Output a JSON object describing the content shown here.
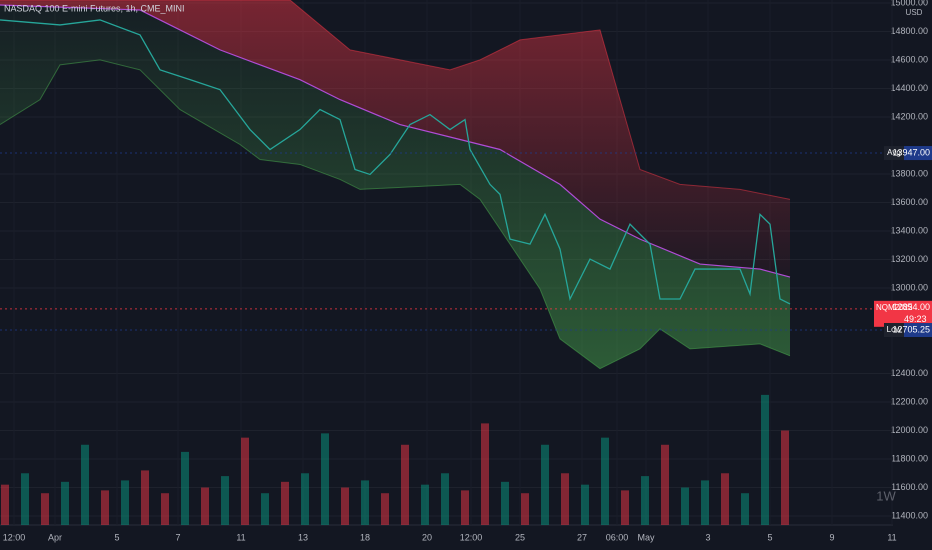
{
  "chart_data": {
    "type": "line",
    "title": "NASDAQ 100 E-mini Futures, 1h, CME_MINI",
    "currency": "USD",
    "timeframe": "1W",
    "xlim": [
      0,
      89.3
    ],
    "ylim": [
      11337,
      15021
    ],
    "grid": true,
    "xticks": [
      {
        "value": 1.4,
        "label": "12:00"
      },
      {
        "value": 5.5,
        "label": "Apr"
      },
      {
        "value": 11.7,
        "label": "5"
      },
      {
        "value": 17.8,
        "label": "7"
      },
      {
        "value": 24.1,
        "label": "11"
      },
      {
        "value": 30.3,
        "label": "13"
      },
      {
        "value": 36.5,
        "label": "18"
      },
      {
        "value": 42.7,
        "label": "20"
      },
      {
        "value": 47.1,
        "label": "12:00"
      },
      {
        "value": 52,
        "label": "25"
      },
      {
        "value": 58.2,
        "label": "27"
      },
      {
        "value": 61.7,
        "label": "06:00"
      },
      {
        "value": 64.6,
        "label": "May"
      },
      {
        "value": 70.8,
        "label": "3"
      },
      {
        "value": 77,
        "label": "5"
      },
      {
        "value": 83.2,
        "label": "9"
      },
      {
        "value": 89.2,
        "label": "11"
      }
    ],
    "yticks": [
      {
        "value": 15000,
        "label": "15000.00"
      },
      {
        "value": 14800,
        "label": "14800.00"
      },
      {
        "value": 14600,
        "label": "14600.00"
      },
      {
        "value": 14400,
        "label": "14400.00"
      },
      {
        "value": 14200,
        "label": "14200.00"
      },
      {
        "value": 13800,
        "label": "13800.00"
      },
      {
        "value": 13600,
        "label": "13600.00"
      },
      {
        "value": 13400,
        "label": "13400.00"
      },
      {
        "value": 13200,
        "label": "13200.00"
      },
      {
        "value": 13000,
        "label": "13000.00"
      },
      {
        "value": 12400,
        "label": "12400.00"
      },
      {
        "value": 12200,
        "label": "12200.00"
      },
      {
        "value": 12000,
        "label": "12000.00"
      },
      {
        "value": 11800,
        "label": "11800.00"
      },
      {
        "value": 11600,
        "label": "11600.00"
      },
      {
        "value": 11400,
        "label": "11400.00"
      }
    ],
    "price": {
      "color": "#26a69a",
      "x": [
        0,
        6,
        10,
        14,
        16,
        19,
        22,
        25,
        27,
        30,
        32,
        34,
        35.5,
        37,
        39,
        41,
        43,
        45,
        46.5,
        47,
        49,
        50,
        51,
        53,
        54.5,
        56,
        57,
        59,
        61,
        63,
        65,
        66,
        68,
        69.5,
        72,
        74,
        75,
        76,
        77,
        78,
        79
      ],
      "values": [
        14881,
        14846,
        14881,
        14776,
        14531,
        14462,
        14392,
        14112,
        13972,
        14112,
        14252,
        14182,
        13832,
        13797,
        13937,
        14147,
        14217,
        14112,
        14182,
        13972,
        13727,
        13657,
        13343,
        13308,
        13517,
        13273,
        12923,
        13203,
        13133,
        13448,
        13308,
        12923,
        12923,
        13133,
        13133,
        13133,
        12958,
        13517,
        13448,
        12923,
        12888
      ]
    },
    "average": {
      "color": "#b04cd6",
      "x": [
        0,
        14,
        16,
        22,
        26,
        30,
        34,
        40,
        46,
        50,
        56,
        60,
        64,
        70,
        76,
        79
      ],
      "values": [
        14986,
        14951,
        14881,
        14671,
        14566,
        14462,
        14322,
        14147,
        14042,
        13972,
        13727,
        13483,
        13343,
        13168,
        13133,
        13077
      ]
    },
    "upper_band": {
      "color": "#f23645",
      "x": [
        0,
        29,
        35,
        45,
        48,
        52,
        60,
        62,
        64,
        68,
        74,
        79
      ],
      "values": [
        15021,
        15021,
        14671,
        14531,
        14601,
        14741,
        14811,
        14322,
        13832,
        13727,
        13692,
        13622
      ]
    },
    "lower_band": {
      "color": "#4caf50",
      "x": [
        0,
        4,
        6,
        10,
        14,
        18,
        24,
        26,
        30,
        34,
        36,
        46,
        48,
        50,
        54,
        56,
        60,
        64,
        66,
        69,
        76,
        79
      ],
      "values": [
        14147,
        14322,
        14566,
        14601,
        14531,
        14252,
        14007,
        13902,
        13867,
        13762,
        13692,
        13727,
        13622,
        13413,
        12993,
        12643,
        12434,
        12573,
        12713,
        12573,
        12608,
        12524
      ]
    },
    "volume": {
      "x": [
        0.5,
        2.5,
        4.5,
        6.5,
        8.5,
        10.5,
        12.5,
        14.5,
        16.5,
        18.5,
        20.5,
        22.5,
        24.5,
        26.5,
        28.5,
        30.5,
        32.5,
        34.5,
        36.5,
        38.5,
        40.5,
        42.5,
        44.5,
        46.5,
        48.5,
        50.5,
        52.5,
        54.5,
        56.5,
        58.5,
        60.5,
        62.5,
        64.5,
        66.5,
        68.5,
        70.5,
        72.5,
        74.5,
        76.5,
        78.5
      ],
      "values": [
        11620,
        11700,
        11560,
        11640,
        11900,
        11580,
        11650,
        11720,
        11560,
        11850,
        11600,
        11680,
        11950,
        11560,
        11640,
        11700,
        11980,
        11600,
        11650,
        11560,
        11900,
        11620,
        11700,
        11580,
        12050,
        11640,
        11560,
        11900,
        11700,
        11620,
        11950,
        11580,
        11680,
        11900,
        11600,
        11650,
        11700,
        11560,
        12250,
        12000
      ],
      "colors": [
        "#f23645",
        "#089981",
        "#f23645",
        "#089981",
        "#089981",
        "#f23645",
        "#089981",
        "#f23645",
        "#f23645",
        "#089981",
        "#f23645",
        "#089981",
        "#f23645",
        "#089981",
        "#f23645",
        "#089981",
        "#089981",
        "#f23645",
        "#089981",
        "#f23645",
        "#f23645",
        "#089981",
        "#089981",
        "#f23645",
        "#f23645",
        "#089981",
        "#f23645",
        "#089981",
        "#f23645",
        "#089981",
        "#089981",
        "#f23645",
        "#089981",
        "#f23645",
        "#089981",
        "#089981",
        "#f23645",
        "#089981",
        "#089981",
        "#f23645"
      ]
    },
    "price_lines": [
      {
        "label": "Avg",
        "value": 13947,
        "value_label": "13947.00",
        "color": "#1e3a8a"
      },
      {
        "label": "NQM2022",
        "value": 12854,
        "value_label": "12854.00",
        "countdown": "49:23",
        "color": "#f23645"
      },
      {
        "label": "Low",
        "value": 12705.25,
        "value_label": "12705.25",
        "color": "#1e3a8a"
      }
    ]
  }
}
